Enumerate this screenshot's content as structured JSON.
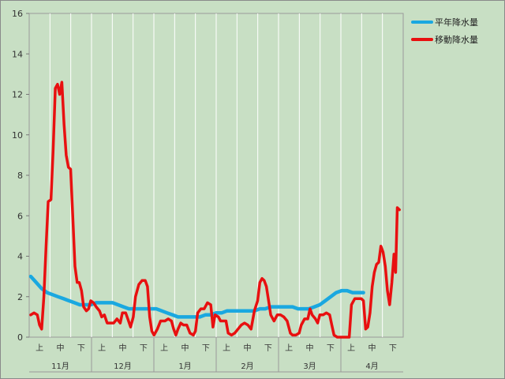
{
  "chart_data": {
    "type": "line",
    "title": "",
    "xlabel": "",
    "ylabel": "",
    "ylim": [
      0,
      16
    ],
    "yticks": [
      0,
      2,
      4,
      6,
      8,
      10,
      12,
      14,
      16
    ],
    "grid": "vertical-only",
    "legend_position": "top-right",
    "months": [
      "11月",
      "12月",
      "1月",
      "2月",
      "3月",
      "4月"
    ],
    "periods": [
      "上",
      "中",
      "下"
    ],
    "series": [
      {
        "name": "平年降水量",
        "color": "#1aa8e0",
        "points": [
          [
            0,
            3.0
          ],
          [
            1,
            2.7
          ],
          [
            2,
            2.4
          ],
          [
            3,
            2.2
          ],
          [
            4,
            2.1
          ],
          [
            5,
            2.0
          ],
          [
            6,
            1.9
          ],
          [
            7,
            1.8
          ],
          [
            8,
            1.7
          ],
          [
            9,
            1.6
          ],
          [
            10,
            1.6
          ],
          [
            11,
            1.6
          ],
          [
            12,
            1.7
          ],
          [
            13,
            1.7
          ],
          [
            14,
            1.7
          ],
          [
            15,
            1.7
          ],
          [
            16,
            1.6
          ],
          [
            17,
            1.5
          ],
          [
            18,
            1.4
          ],
          [
            19,
            1.4
          ],
          [
            20,
            1.4
          ],
          [
            21,
            1.4
          ],
          [
            22,
            1.4
          ],
          [
            23,
            1.4
          ],
          [
            24,
            1.3
          ],
          [
            25,
            1.2
          ],
          [
            26,
            1.1
          ],
          [
            27,
            1.0
          ],
          [
            28,
            1.0
          ],
          [
            29,
            1.0
          ],
          [
            30,
            1.0
          ],
          [
            31,
            1.0
          ],
          [
            32,
            1.1
          ],
          [
            33,
            1.1
          ],
          [
            34,
            1.2
          ],
          [
            35,
            1.2
          ],
          [
            36,
            1.3
          ],
          [
            37,
            1.3
          ],
          [
            38,
            1.3
          ],
          [
            39,
            1.3
          ],
          [
            40,
            1.3
          ],
          [
            41,
            1.3
          ],
          [
            42,
            1.4
          ],
          [
            43,
            1.4
          ],
          [
            44,
            1.5
          ],
          [
            45,
            1.5
          ],
          [
            46,
            1.5
          ],
          [
            47,
            1.5
          ],
          [
            48,
            1.5
          ],
          [
            49,
            1.4
          ],
          [
            50,
            1.4
          ],
          [
            51,
            1.4
          ],
          [
            52,
            1.5
          ],
          [
            53,
            1.6
          ],
          [
            54,
            1.8
          ],
          [
            55,
            2.0
          ],
          [
            56,
            2.2
          ],
          [
            57,
            2.3
          ],
          [
            58,
            2.3
          ],
          [
            59,
            2.2
          ],
          [
            60,
            2.2
          ],
          [
            61,
            2.2
          ]
        ]
      },
      {
        "name": "移動降水量",
        "color": "#e81010",
        "points": [
          [
            0,
            1.1
          ],
          [
            0.6,
            1.2
          ],
          [
            1.2,
            1.1
          ],
          [
            1.6,
            0.6
          ],
          [
            2,
            0.4
          ],
          [
            2.4,
            2.0
          ],
          [
            2.8,
            4.5
          ],
          [
            3.2,
            6.7
          ],
          [
            3.7,
            6.8
          ],
          [
            4.1,
            9.2
          ],
          [
            4.5,
            12.3
          ],
          [
            4.9,
            12.5
          ],
          [
            5.3,
            12.0
          ],
          [
            5.7,
            12.6
          ],
          [
            6.1,
            10.5
          ],
          [
            6.5,
            9.0
          ],
          [
            6.9,
            8.4
          ],
          [
            7.3,
            8.3
          ],
          [
            7.7,
            6.0
          ],
          [
            8.1,
            3.5
          ],
          [
            8.5,
            2.7
          ],
          [
            8.9,
            2.7
          ],
          [
            9.3,
            2.3
          ],
          [
            9.7,
            1.5
          ],
          [
            10.2,
            1.3
          ],
          [
            10.6,
            1.4
          ],
          [
            11,
            1.8
          ],
          [
            11.5,
            1.7
          ],
          [
            12,
            1.5
          ],
          [
            12.6,
            1.3
          ],
          [
            13,
            1.0
          ],
          [
            13.5,
            1.1
          ],
          [
            14,
            0.7
          ],
          [
            14.6,
            0.7
          ],
          [
            15.2,
            0.7
          ],
          [
            15.8,
            0.9
          ],
          [
            16.4,
            0.7
          ],
          [
            16.8,
            1.2
          ],
          [
            17.4,
            1.2
          ],
          [
            17.8,
            0.9
          ],
          [
            18.3,
            0.5
          ],
          [
            18.8,
            1.0
          ],
          [
            19.2,
            2.0
          ],
          [
            19.8,
            2.6
          ],
          [
            20.4,
            2.8
          ],
          [
            21,
            2.8
          ],
          [
            21.4,
            2.5
          ],
          [
            21.8,
            1.0
          ],
          [
            22.2,
            0.3
          ],
          [
            22.6,
            0.1
          ],
          [
            23.2,
            0.4
          ],
          [
            23.8,
            0.8
          ],
          [
            24.6,
            0.8
          ],
          [
            25.2,
            0.9
          ],
          [
            25.8,
            0.8
          ],
          [
            26.2,
            0.4
          ],
          [
            26.6,
            0.1
          ],
          [
            27,
            0.4
          ],
          [
            27.5,
            0.7
          ],
          [
            28,
            0.6
          ],
          [
            28.6,
            0.6
          ],
          [
            29.2,
            0.2
          ],
          [
            29.8,
            0.1
          ],
          [
            30.2,
            0.3
          ],
          [
            30.6,
            1.2
          ],
          [
            31.2,
            1.4
          ],
          [
            31.8,
            1.4
          ],
          [
            32.4,
            1.7
          ],
          [
            33,
            1.6
          ],
          [
            33.4,
            0.5
          ],
          [
            33.8,
            1.1
          ],
          [
            34.4,
            1.0
          ],
          [
            34.8,
            0.8
          ],
          [
            35.4,
            0.8
          ],
          [
            35.8,
            0.8
          ],
          [
            36.2,
            0.2
          ],
          [
            36.8,
            0.1
          ],
          [
            37.4,
            0.2
          ],
          [
            38,
            0.4
          ],
          [
            38.6,
            0.6
          ],
          [
            39.2,
            0.7
          ],
          [
            39.8,
            0.6
          ],
          [
            40.4,
            0.4
          ],
          [
            41,
            1.3
          ],
          [
            41.6,
            1.8
          ],
          [
            42,
            2.7
          ],
          [
            42.4,
            2.9
          ],
          [
            42.8,
            2.8
          ],
          [
            43.2,
            2.5
          ],
          [
            43.6,
            1.8
          ],
          [
            44,
            1.1
          ],
          [
            44.6,
            0.8
          ],
          [
            45.2,
            1.1
          ],
          [
            45.8,
            1.1
          ],
          [
            46.4,
            1.0
          ],
          [
            47,
            0.8
          ],
          [
            47.6,
            0.2
          ],
          [
            48,
            0.1
          ],
          [
            48.6,
            0.1
          ],
          [
            49.2,
            0.2
          ],
          [
            49.6,
            0.6
          ],
          [
            50.2,
            0.9
          ],
          [
            50.8,
            0.9
          ],
          [
            51.2,
            1.4
          ],
          [
            51.6,
            1.1
          ],
          [
            52.2,
            0.9
          ],
          [
            52.6,
            0.7
          ],
          [
            53,
            1.1
          ],
          [
            53.6,
            1.1
          ],
          [
            54.2,
            1.2
          ],
          [
            54.8,
            1.1
          ],
          [
            55.2,
            0.6
          ],
          [
            55.6,
            0.1
          ],
          [
            56.2,
            0.0
          ],
          [
            57,
            0.0
          ],
          [
            57.8,
            0.0
          ],
          [
            58.4,
            0.0
          ],
          [
            58.8,
            1.6
          ],
          [
            59.4,
            1.9
          ],
          [
            60,
            1.9
          ],
          [
            60.6,
            1.9
          ],
          [
            61,
            1.8
          ],
          [
            61.4,
            0.4
          ],
          [
            61.8,
            0.5
          ],
          [
            62.2,
            1.2
          ],
          [
            62.6,
            2.5
          ],
          [
            63,
            3.2
          ],
          [
            63.4,
            3.6
          ],
          [
            63.8,
            3.7
          ],
          [
            64.2,
            4.5
          ],
          [
            64.6,
            4.2
          ],
          [
            65,
            3.5
          ],
          [
            65.4,
            2.3
          ],
          [
            65.8,
            1.6
          ],
          [
            66.2,
            2.7
          ],
          [
            66.6,
            4.1
          ],
          [
            66.9,
            3.2
          ],
          [
            67.2,
            6.4
          ],
          [
            67.6,
            6.3
          ]
        ]
      }
    ]
  }
}
